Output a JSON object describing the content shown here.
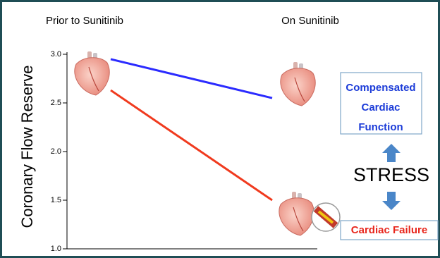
{
  "chart_data": {
    "type": "line",
    "categories": [
      "Prior to Sunitinib",
      "On Sunitinib"
    ],
    "series": [
      {
        "color": "#2b2bff",
        "values": [
          2.95,
          2.55
        ]
      },
      {
        "color": "#f03a1e",
        "values": [
          2.63,
          1.5
        ]
      }
    ],
    "ylabel": "Coronary Flow Reserve",
    "ylim": [
      1.0,
      3.0
    ],
    "yticks": [
      {
        "value": 1.0,
        "label": "1.0"
      },
      {
        "value": 1.5,
        "label": "1.5"
      },
      {
        "value": 2.0,
        "label": "2.0"
      },
      {
        "value": 2.5,
        "label": "2.5"
      },
      {
        "value": 3.0,
        "label": "3.0"
      }
    ],
    "annotations": [
      [
        "Compensated",
        "Cardiac",
        "Function"
      ],
      [
        "STRESS"
      ],
      [
        "Cardiac Failure"
      ]
    ]
  }
}
